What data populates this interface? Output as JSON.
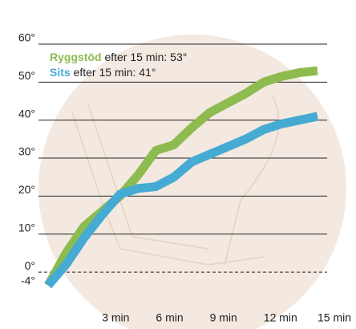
{
  "chart_data": {
    "type": "line",
    "x": [
      0,
      1,
      2,
      3,
      4,
      5,
      6,
      7,
      8,
      9,
      10,
      11,
      12,
      13,
      14,
      15
    ],
    "xlim": [
      0,
      15
    ],
    "xticks": [
      {
        "value": 3,
        "label": "3 min"
      },
      {
        "value": 6,
        "label": "6 min"
      },
      {
        "value": 9,
        "label": "9 min"
      },
      {
        "value": 12,
        "label": "12 min"
      },
      {
        "value": 15,
        "label": "15 min"
      }
    ],
    "ylim": [
      -4,
      60
    ],
    "yticks": [
      {
        "value": -4,
        "label": "-4°"
      },
      {
        "value": 0,
        "label": "0°"
      },
      {
        "value": 10,
        "label": "10°"
      },
      {
        "value": 20,
        "label": "20°"
      },
      {
        "value": 30,
        "label": "30°"
      },
      {
        "value": 40,
        "label": "40°"
      },
      {
        "value": 50,
        "label": "50°"
      },
      {
        "value": 60,
        "label": "60°"
      }
    ],
    "grid": true,
    "series": [
      {
        "name": "Ryggstöd",
        "color": "#8dbb4f",
        "annotation": "efter 15 min: 53°",
        "values": [
          -3.5,
          5,
          12,
          16,
          20,
          25.5,
          32,
          33.5,
          38,
          42,
          44.5,
          47,
          50,
          51.5,
          52.5,
          53
        ]
      },
      {
        "name": "Sits",
        "color": "#45abd2",
        "annotation": "efter 15 min: 41°",
        "values": [
          -3.5,
          2,
          9,
          15,
          20.5,
          22,
          22.5,
          25,
          29,
          31,
          33,
          35,
          37.5,
          39,
          40,
          41
        ]
      }
    ]
  }
}
